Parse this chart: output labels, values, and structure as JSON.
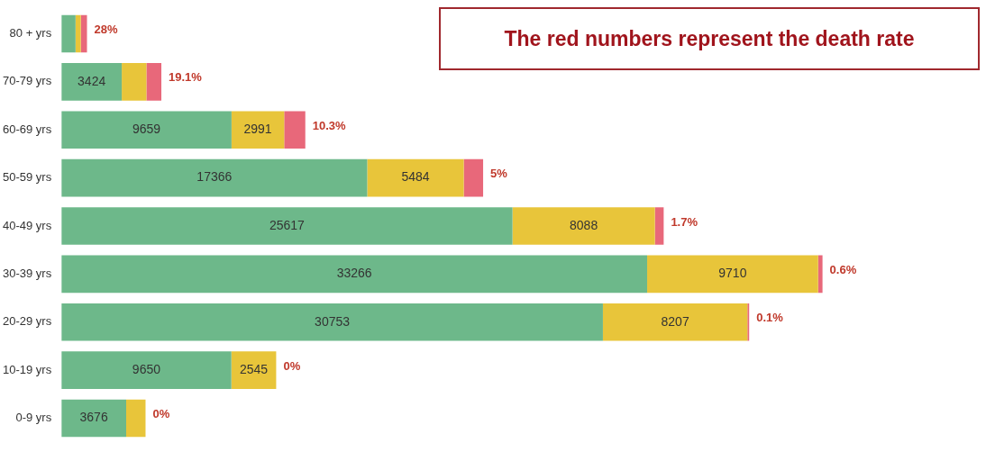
{
  "chart_data": {
    "type": "bar",
    "orientation": "horizontal",
    "stacked": true,
    "categories": [
      "80 + yrs",
      "70-79 yrs",
      "60-69 yrs",
      "50-59 yrs",
      "40-49 yrs",
      "30-39 yrs",
      "20-29 yrs",
      "10-19 yrs",
      "0-9 yrs"
    ],
    "series": [
      {
        "color": "#6db88a",
        "values": [
          800,
          3424,
          9659,
          17366,
          25617,
          33266,
          30753,
          9650,
          3676
        ],
        "value_labels": [
          null,
          "3424",
          "9659",
          "17366",
          "25617",
          "33266",
          "30753",
          "9650",
          "3676"
        ]
      },
      {
        "color": "#e8c53a",
        "values": [
          300,
          1400,
          2991,
          5484,
          8088,
          9710,
          8207,
          2545,
          1100
        ],
        "value_labels": [
          null,
          null,
          "2991",
          "5484",
          "8088",
          "9710",
          "8207",
          "2545",
          null
        ]
      },
      {
        "color": "#e8687a",
        "values": [
          350,
          850,
          1200,
          1100,
          500,
          250,
          100,
          0,
          0
        ]
      }
    ],
    "xlim": [
      0,
      52000
    ],
    "tick_labels": "y",
    "grid": false,
    "legend": false,
    "annotations": [
      "The red numbers represent the death rate",
      {
        "text": "28%",
        "x": 1450,
        "y": "80 + yrs"
      },
      {
        "text": "19.1%",
        "x": 5674,
        "y": "70-79 yrs"
      },
      {
        "text": "10.3%",
        "x": 13850,
        "y": "60-69 yrs"
      },
      {
        "text": "5%",
        "x": 23950,
        "y": "50-59 yrs"
      },
      {
        "text": "1.7%",
        "x": 34205,
        "y": "40-49 yrs"
      },
      {
        "text": "0.6%",
        "x": 43226,
        "y": "30-39 yrs"
      },
      {
        "text": "0.1%",
        "x": 39060,
        "y": "20-29 yrs"
      },
      {
        "text": "0%",
        "x": 12195,
        "y": "10-19 yrs"
      },
      {
        "text": "0%",
        "x": 4776,
        "y": "0-9 yrs"
      }
    ]
  }
}
